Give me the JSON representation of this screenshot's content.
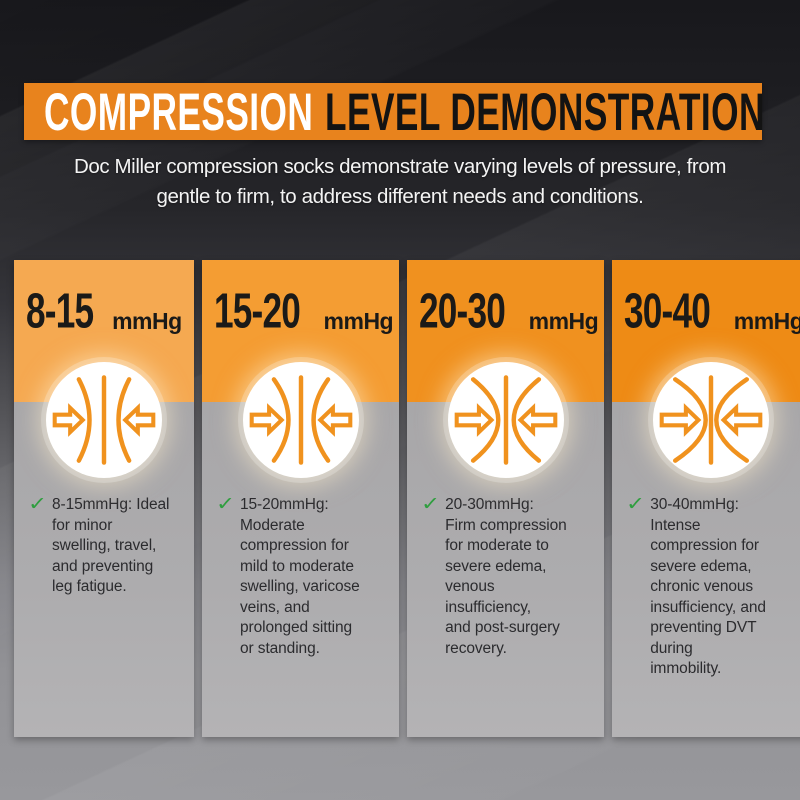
{
  "title": {
    "primary": "COMPRESSION",
    "secondary": "LEVEL DEMONSTRATION"
  },
  "subtitle_lines": [
    "Doc Miller compression socks demonstrate varying levels of pressure, from",
    "gentle to firm, to address different needs and conditions."
  ],
  "columns": [
    {
      "level": 1,
      "range": "8-15",
      "unit": "mmHg",
      "header_color": "#f5a951",
      "icon": "compression-arrows-icon",
      "description": "8-15mmHg: Ideal\nfor minor\nswelling, travel,\nand preventing\nleg fatigue."
    },
    {
      "level": 2,
      "range": "15-20",
      "unit": "mmHg",
      "header_color": "#f49d33",
      "icon": "compression-arrows-icon",
      "description": "15-20mmHg:\nModerate\ncompression for\nmild to moderate\nswelling, varicose\nveins, and\nprolonged sitting\nor standing."
    },
    {
      "level": 3,
      "range": "20-30",
      "unit": "mmHg",
      "header_color": "#f0911f",
      "icon": "compression-arrows-icon",
      "description": "20-30mmHg:\nFirm compression\nfor moderate to\nsevere edema,\nvenous\ninsufficiency,\nand post-surgery\nrecovery."
    },
    {
      "level": 4,
      "range": "30-40",
      "unit": "mmHg",
      "header_color": "#ee8b15",
      "icon": "compression-arrows-icon",
      "description": "30-40mmHg:\nIntense\ncompression for\nsevere edema,\nchronic venous\ninsufficiency, and\npreventing DVT\nduring\nimmobility."
    }
  ],
  "check_glyph": "✓",
  "colors": {
    "banner_orange": "#e8831d",
    "icon_stroke": "#f0921e",
    "check_green": "#2f9e3f"
  }
}
